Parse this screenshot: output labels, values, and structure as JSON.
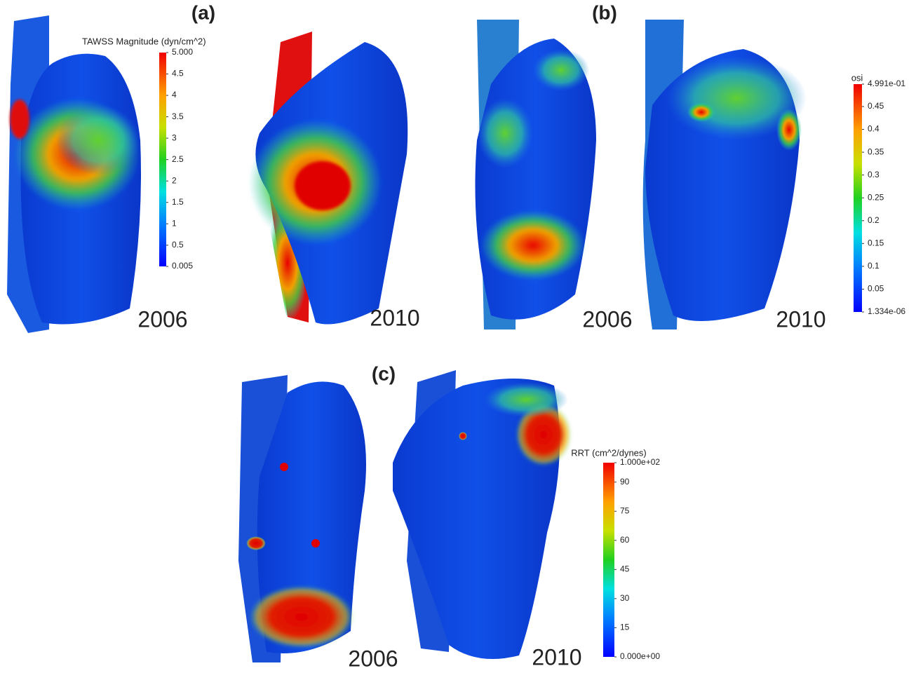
{
  "panels": [
    {
      "label": "(a)",
      "years": [
        "2006",
        "2010"
      ],
      "colorbar": {
        "title": "TAWSS Magnitude (dyn/cm^2)",
        "range": [
          0.005,
          5
        ],
        "ticks": [
          {
            "value": 5,
            "label": "5.000"
          },
          4.5,
          4,
          3.5,
          3,
          2.5,
          2,
          1.5,
          1,
          0.5,
          0.005
        ]
      }
    },
    {
      "label": "(b)",
      "years": [
        "2006",
        "2010"
      ],
      "colorbar": {
        "title": "osi",
        "range": [
          1.334e-06,
          0.4991
        ],
        "ticks": [
          {
            "value": 0.4991,
            "label": "4.991e-01"
          },
          0.45,
          0.4,
          0.35,
          0.3,
          0.25,
          0.2,
          0.15,
          0.1,
          0.05,
          {
            "value": 1.334e-06,
            "label": "1.334e-06"
          }
        ]
      }
    },
    {
      "label": "(c)",
      "years": [
        "2006",
        "2010"
      ],
      "colorbar": {
        "title": "RRT (cm^2/dynes)",
        "range": [
          0,
          100
        ],
        "ticks": [
          {
            "value": 100,
            "label": "1.000e+02"
          },
          90,
          75,
          60,
          45,
          30,
          15,
          {
            "value": 0,
            "label": "0.000e+00"
          }
        ]
      }
    }
  ]
}
